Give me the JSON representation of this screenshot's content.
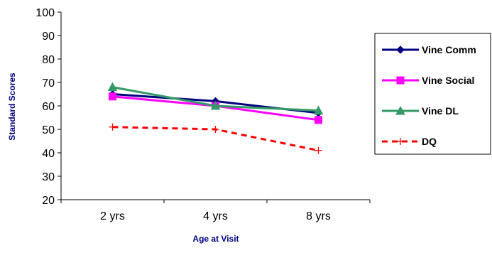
{
  "chart_data": {
    "type": "line",
    "categories": [
      "2 yrs",
      "4 yrs",
      "8 yrs"
    ],
    "xlabel": "Age at Visit",
    "ylabel": "Standard Scores",
    "ylim": [
      20,
      100
    ],
    "yticks": [
      20,
      30,
      40,
      50,
      60,
      70,
      80,
      90,
      100
    ],
    "grid": false,
    "legend_position": "right",
    "series": [
      {
        "name": "Vine Comm",
        "values": [
          65,
          62,
          57
        ],
        "color": "#000080",
        "marker": "diamond",
        "dash": "solid"
      },
      {
        "name": "Vine Social",
        "values": [
          64,
          60,
          54
        ],
        "color": "#FF00FF",
        "marker": "square",
        "dash": "solid"
      },
      {
        "name": "Vine DL",
        "values": [
          68,
          60,
          58
        ],
        "color": "#339966",
        "marker": "triangle",
        "dash": "solid"
      },
      {
        "name": "DQ",
        "values": [
          51,
          50,
          41
        ],
        "color": "#FF0000",
        "marker": "plus",
        "dash": "dashed"
      }
    ]
  }
}
